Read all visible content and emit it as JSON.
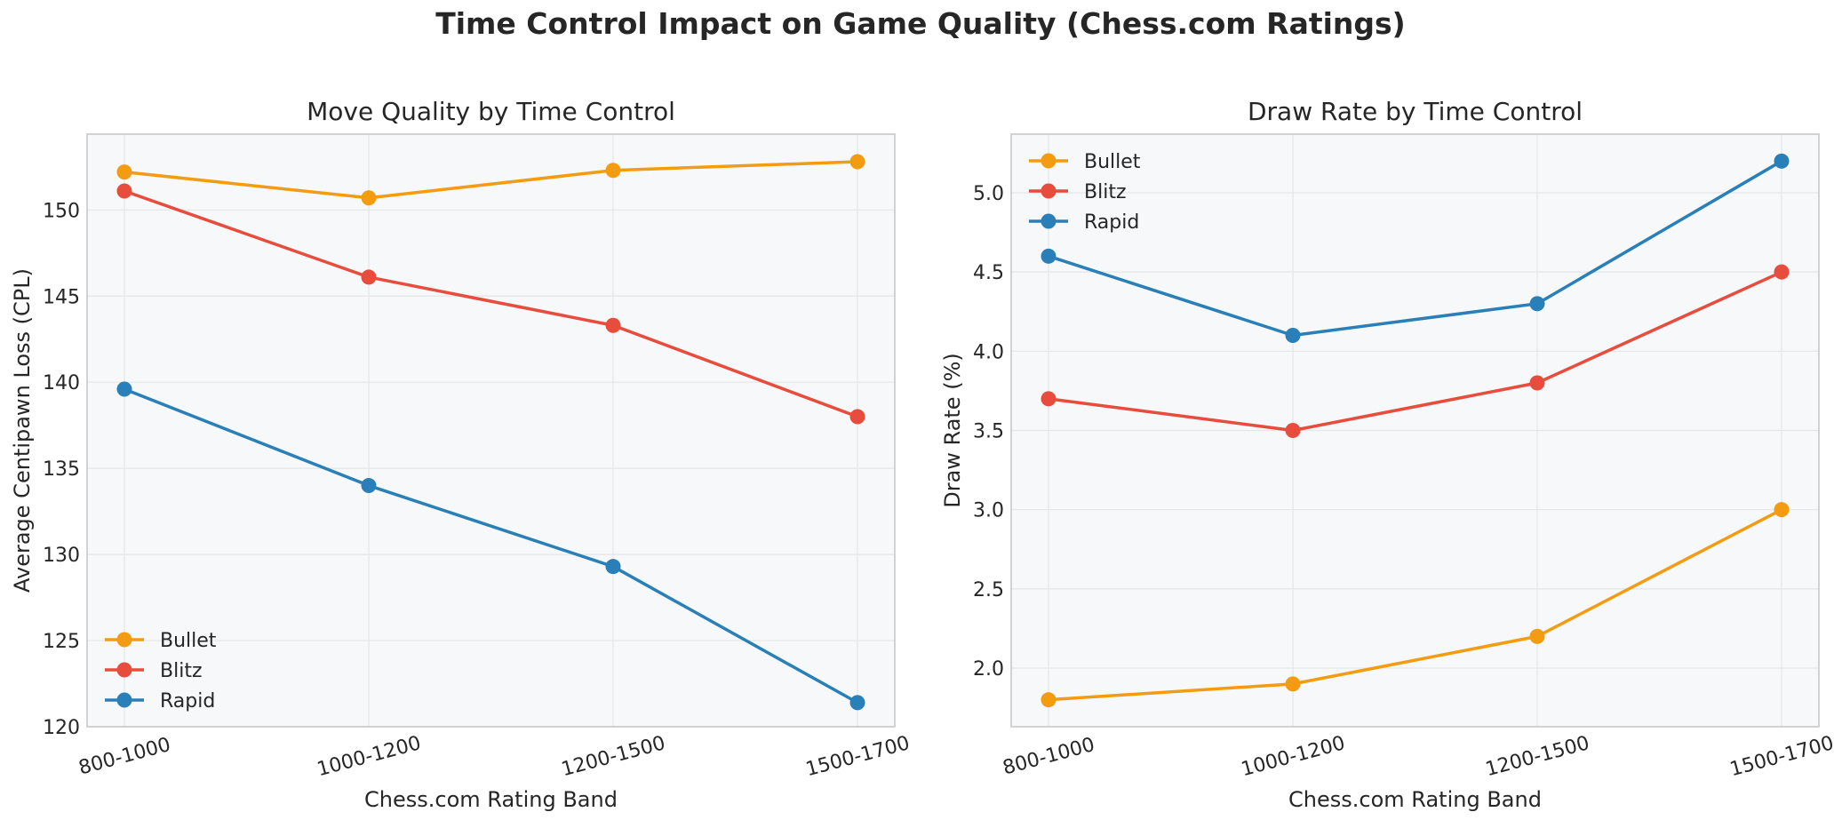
{
  "figure": {
    "suptitle": "Time Control Impact on Game Quality (Chess.com Ratings)"
  },
  "colors": {
    "Bullet": "#f39c12",
    "Blitz": "#e74c3c",
    "Rapid": "#2980b9",
    "axes_face": "#f7f8f9",
    "grid": "#e4e6e8",
    "spine": "#c8c8c8"
  },
  "chart_data": [
    {
      "type": "line",
      "title": "Move Quality by Time Control",
      "xlabel": "Chess.com Rating Band",
      "ylabel": "Average Centipawn Loss (CPL)",
      "categories": [
        "800-1000",
        "1000-1200",
        "1200-1500",
        "1500-1700"
      ],
      "ylim": [
        120,
        154.4
      ],
      "yticks": [
        120,
        125,
        130,
        135,
        140,
        145,
        150
      ],
      "ytick_labels": [
        "120",
        "125",
        "130",
        "135",
        "140",
        "145",
        "150"
      ],
      "grid": true,
      "legend_position": "lower-left",
      "series": [
        {
          "name": "Bullet",
          "values": [
            152.2,
            150.7,
            152.3,
            152.8
          ]
        },
        {
          "name": "Blitz",
          "values": [
            151.1,
            146.1,
            143.3,
            138.0
          ]
        },
        {
          "name": "Rapid",
          "values": [
            139.6,
            134.0,
            129.3,
            121.4
          ]
        }
      ]
    },
    {
      "type": "line",
      "title": "Draw Rate by Time Control",
      "xlabel": "Chess.com Rating Band",
      "ylabel": "Draw Rate (%)",
      "categories": [
        "800-1000",
        "1000-1200",
        "1200-1500",
        "1500-1700"
      ],
      "ylim": [
        1.63,
        5.37
      ],
      "yticks": [
        2.0,
        2.5,
        3.0,
        3.5,
        4.0,
        4.5,
        5.0
      ],
      "ytick_labels": [
        "2.0",
        "2.5",
        "3.0",
        "3.5",
        "4.0",
        "4.5",
        "5.0"
      ],
      "grid": true,
      "legend_position": "upper-left",
      "series": [
        {
          "name": "Bullet",
          "values": [
            1.8,
            1.9,
            2.2,
            3.0
          ]
        },
        {
          "name": "Blitz",
          "values": [
            3.7,
            3.5,
            3.8,
            4.5
          ]
        },
        {
          "name": "Rapid",
          "values": [
            4.6,
            4.1,
            4.3,
            5.2
          ]
        }
      ]
    }
  ]
}
